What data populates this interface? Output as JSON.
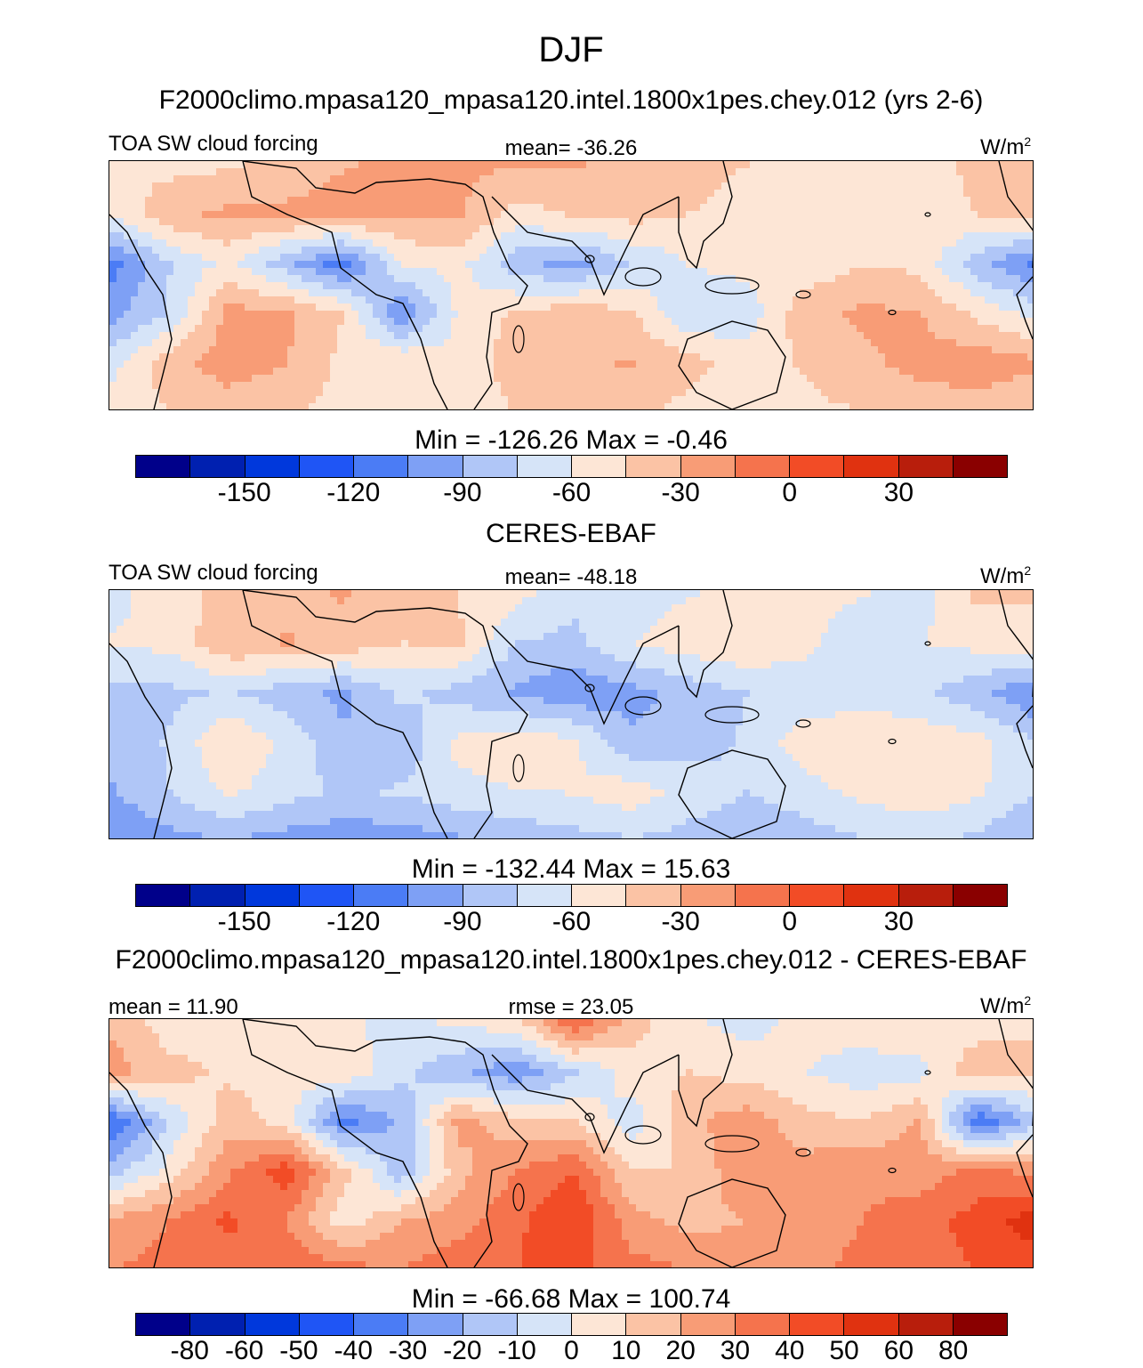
{
  "figure": {
    "title": "DJF",
    "panel_labels": [
      "F2000climo.mpasa120_mpasa120.intel.1800x1pes.chey.012 (yrs 2-6)",
      "CERES-EBAF",
      "F2000climo.mpasa120_mpasa120.intel.1800x1pes.chey.012 - CERES-EBAF"
    ]
  },
  "colors": {
    "main": [
      "#00008a",
      "#0020b0",
      "#0038dc",
      "#1f55f5",
      "#4b7cf5",
      "#7ea0f5",
      "#b0c6f7",
      "#d6e4f8",
      "#fde6d6",
      "#fbc3a5",
      "#f89c76",
      "#f5734d",
      "#f24c26",
      "#e03210",
      "#b81e0c",
      "#8a0000"
    ],
    "diff": [
      "#00008a",
      "#0020b0",
      "#0038dc",
      "#1f55f5",
      "#4b7cf5",
      "#7ea0f5",
      "#b0c6f7",
      "#d6e4f8",
      "#fde6d6",
      "#fbc3a5",
      "#f89c76",
      "#f5734d",
      "#f24c26",
      "#e03210",
      "#b81e0c",
      "#8a0000"
    ],
    "coastline": "#000000"
  },
  "chart_data": [
    {
      "type": "heatmap",
      "title": "F2000climo.mpasa120_mpasa120.intel.1800x1pes.chey.012 (yrs 2-6)",
      "variable": "TOA SW cloud forcing",
      "mean_text": "mean= -36.26",
      "units_base": "W/m",
      "units_exp": "2",
      "minmax_text": "Min = -126.26 Max =  -0.46",
      "min": -126.26,
      "max": -0.46,
      "mean": -36.26,
      "colorbar_ticks": [
        "-150",
        "-120",
        "-90",
        "-60",
        "-30",
        "0",
        "30"
      ],
      "colorbar_levels": [
        -165,
        -150,
        -135,
        -120,
        -105,
        -90,
        -75,
        -60,
        -45,
        -30,
        -15,
        0,
        15,
        30,
        45
      ],
      "field": [
        [
          -32,
          -35,
          -32,
          -24,
          -16,
          -12,
          -12,
          -14,
          -14,
          -18,
          -22,
          -30,
          -34,
          -36,
          -38,
          -26,
          -22
        ],
        [
          -42,
          -18,
          -12,
          -12,
          -8,
          -12,
          -12,
          -36,
          -28,
          -24,
          -30,
          -38,
          -42,
          -38,
          -34,
          -30,
          -20
        ],
        [
          -95,
          -60,
          -40,
          -70,
          -100,
          -44,
          -40,
          -70,
          -82,
          -60,
          -44,
          -40,
          -42,
          -30,
          -34,
          -70,
          -95
        ],
        [
          -80,
          -58,
          -10,
          -12,
          -30,
          -90,
          -42,
          -28,
          -20,
          -28,
          -60,
          -54,
          -20,
          -12,
          -14,
          -34,
          -50
        ],
        [
          -50,
          -20,
          -8,
          -14,
          -34,
          -30,
          -42,
          -20,
          -16,
          -14,
          -24,
          -38,
          -28,
          -18,
          -10,
          -6,
          -12
        ],
        [
          -38,
          -30,
          -22,
          -28,
          -36,
          -46,
          -40,
          -30,
          -28,
          -26,
          -36,
          -40,
          -34,
          -30,
          -24,
          -22,
          -28
        ]
      ]
    },
    {
      "type": "heatmap",
      "title": "CERES-EBAF",
      "variable": "TOA SW cloud forcing",
      "mean_text": "mean= -48.18",
      "units_base": "W/m",
      "units_exp": "2",
      "minmax_text": "Min = -132.44 Max =  15.63",
      "min": -132.44,
      "max": 15.63,
      "mean": -48.18,
      "colorbar_ticks": [
        "-150",
        "-120",
        "-90",
        "-60",
        "-30",
        "0",
        "30"
      ],
      "colorbar_levels": [
        -165,
        -150,
        -135,
        -120,
        -105,
        -90,
        -75,
        -60,
        -45,
        -30,
        -15,
        0,
        15,
        30,
        45
      ],
      "field": [
        [
          -50,
          -36,
          -26,
          -18,
          -14,
          -20,
          -30,
          -40,
          -56,
          -52,
          -46,
          -40,
          -38,
          -44,
          -50,
          -26,
          -28
        ],
        [
          -44,
          -40,
          -18,
          -14,
          -20,
          -30,
          -28,
          -60,
          -64,
          -46,
          -36,
          -30,
          -40,
          -58,
          -46,
          -40,
          -36
        ],
        [
          -66,
          -64,
          -58,
          -70,
          -78,
          -56,
          -66,
          -78,
          -88,
          -80,
          -70,
          -60,
          -56,
          -52,
          -58,
          -70,
          -90
        ],
        [
          -72,
          -58,
          -30,
          -48,
          -74,
          -72,
          -40,
          -34,
          -42,
          -72,
          -66,
          -58,
          -36,
          -32,
          -34,
          -40,
          -60
        ],
        [
          -76,
          -60,
          -42,
          -54,
          -62,
          -58,
          -50,
          -46,
          -44,
          -36,
          -52,
          -60,
          -52,
          -40,
          -34,
          -42,
          -60
        ],
        [
          -90,
          -80,
          -76,
          -82,
          -86,
          -84,
          -78,
          -72,
          -66,
          -62,
          -66,
          -70,
          -68,
          -62,
          -58,
          -64,
          -78
        ]
      ]
    },
    {
      "type": "heatmap",
      "title": "F2000climo.mpasa120_mpasa120.intel.1800x1pes.chey.012 - CERES-EBAF",
      "variable": "",
      "mean_text": "mean =  11.90",
      "rmse_text": "rmse =  23.05",
      "units_base": "W/m",
      "units_exp": "2",
      "minmax_text": "Min = -66.68 Max = 100.74",
      "min": -66.68,
      "max": 100.74,
      "mean": 11.9,
      "rmse": 23.05,
      "colorbar_ticks": [
        "-80",
        "-60",
        "-50",
        "-40",
        "-30",
        "-20",
        "-10",
        "0",
        "10",
        "20",
        "30",
        "40",
        "50",
        "60",
        "80"
      ],
      "colorbar_levels": [
        -90,
        -80,
        -60,
        -50,
        -40,
        -30,
        -20,
        -10,
        0,
        10,
        20,
        30,
        40,
        50,
        60,
        80,
        90
      ],
      "field": [
        [
          18,
          4,
          2,
          4,
          2,
          -4,
          2,
          6,
          40,
          14,
          2,
          -4,
          4,
          6,
          10,
          4,
          8
        ],
        [
          24,
          14,
          8,
          4,
          8,
          -8,
          -18,
          -28,
          -12,
          6,
          10,
          6,
          0,
          -6,
          -4,
          18,
          14
        ],
        [
          -40,
          -8,
          16,
          6,
          -34,
          -18,
          24,
          14,
          10,
          -6,
          18,
          26,
          14,
          10,
          22,
          -40,
          -14
        ],
        [
          -14,
          4,
          28,
          46,
          14,
          -18,
          16,
          30,
          40,
          10,
          10,
          30,
          24,
          28,
          24,
          34,
          26
        ],
        [
          22,
          30,
          42,
          30,
          4,
          20,
          26,
          38,
          50,
          24,
          16,
          20,
          26,
          30,
          36,
          44,
          56
        ],
        [
          30,
          34,
          36,
          40,
          34,
          30,
          36,
          40,
          42,
          34,
          30,
          26,
          28,
          32,
          36,
          40,
          44
        ]
      ]
    }
  ]
}
